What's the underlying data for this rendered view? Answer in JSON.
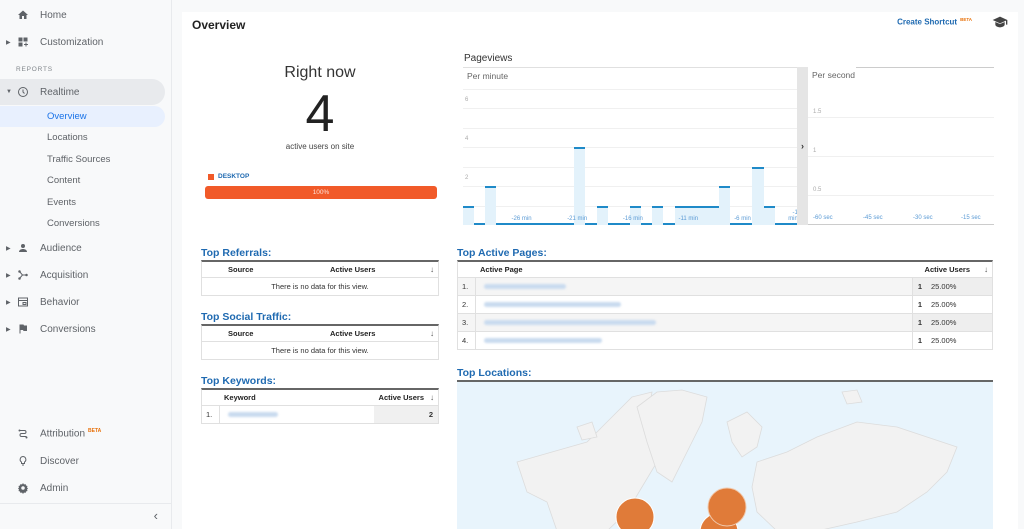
{
  "sidebar": {
    "top_items": [
      {
        "label": "Home",
        "icon": "home-icon"
      },
      {
        "label": "Customization",
        "icon": "dashboard-icon"
      }
    ],
    "reports_label": "REPORTS",
    "realtime": {
      "label": "Realtime",
      "icon": "clock-icon",
      "subitems": [
        {
          "label": "Overview",
          "active": true
        },
        {
          "label": "Locations"
        },
        {
          "label": "Traffic Sources"
        },
        {
          "label": "Content"
        },
        {
          "label": "Events"
        },
        {
          "label": "Conversions"
        }
      ]
    },
    "report_items": [
      {
        "label": "Audience",
        "icon": "person-icon"
      },
      {
        "label": "Acquisition",
        "icon": "branch-icon"
      },
      {
        "label": "Behavior",
        "icon": "window-icon"
      },
      {
        "label": "Conversions",
        "icon": "flag-icon"
      }
    ],
    "bottom_items": [
      {
        "label": "Attribution",
        "badge": "BETA",
        "icon": "attribution-icon"
      },
      {
        "label": "Discover",
        "icon": "lightbulb-icon"
      },
      {
        "label": "Admin",
        "icon": "gear-icon"
      }
    ],
    "collapse_glyph": "‹"
  },
  "header": {
    "title": "Overview",
    "shortcut_label": "Create Shortcut",
    "shortcut_badge": "BETA"
  },
  "right_now": {
    "title": "Right now",
    "count": "4",
    "subtitle": "active users on site",
    "device_label": "DESKTOP",
    "device_percent": "100%",
    "device_color": "#f15a29"
  },
  "pageviews": {
    "title": "Pageviews",
    "per_minute_label": "Per minute",
    "per_second_label": "Per second",
    "expand_glyph": "›"
  },
  "chart_data": [
    {
      "type": "bar",
      "title": "Pageviews — Per minute",
      "x": [
        "-30",
        "-29",
        "-28",
        "-27",
        "-26",
        "-25",
        "-24",
        "-23",
        "-22",
        "-21",
        "-20",
        "-19",
        "-18",
        "-17",
        "-16",
        "-15",
        "-14",
        "-13",
        "-12",
        "-11",
        "-10",
        "-9",
        "-8",
        "-7",
        "-6",
        "-5",
        "-4",
        "-3",
        "-2",
        "-1"
      ],
      "values": [
        1,
        0,
        2,
        0,
        0,
        0,
        0,
        0,
        0,
        0,
        4,
        0,
        1,
        0,
        0,
        1,
        0,
        1,
        0,
        1,
        1,
        1,
        1,
        2,
        0,
        0,
        3,
        1,
        0,
        0
      ],
      "xtick_labels": [
        "-26 min",
        "-21 min",
        "-16 min",
        "-11 min",
        "-6 min",
        "-1 min"
      ],
      "yticks": [
        "2",
        "4",
        "6"
      ],
      "ylim": [
        0,
        8
      ],
      "grid": true,
      "bar_color": "#e3f2fb",
      "line_color": "#1f8ac8"
    },
    {
      "type": "bar",
      "title": "Pageviews — Per second",
      "values": [],
      "xtick_labels": [
        "-60 sec",
        "-45 sec",
        "-30 sec",
        "-15 sec"
      ],
      "yticks": [
        "0.5",
        "1",
        "1.5"
      ],
      "ylim": [
        0,
        2
      ],
      "grid": true
    }
  ],
  "top_referrals": {
    "title": "Top Referrals:",
    "col_source": "Source",
    "col_users": "Active Users",
    "empty": "There is no data for this view."
  },
  "top_social": {
    "title": "Top Social Traffic:",
    "col_source": "Source",
    "col_users": "Active Users",
    "empty": "There is no data for this view."
  },
  "top_keywords": {
    "title": "Top Keywords:",
    "col_keyword": "Keyword",
    "col_users": "Active Users",
    "rows": [
      {
        "index": "1.",
        "value": "2"
      }
    ]
  },
  "top_pages": {
    "title": "Top Active Pages:",
    "col_page": "Active Page",
    "col_users": "Active Users",
    "rows": [
      {
        "index": "1.",
        "users": "1",
        "percent": "25.00%"
      },
      {
        "index": "2.",
        "users": "1",
        "percent": "25.00%"
      },
      {
        "index": "3.",
        "users": "1",
        "percent": "25.00%"
      },
      {
        "index": "4.",
        "users": "1",
        "percent": "25.00%"
      }
    ]
  },
  "top_locations": {
    "title": "Top Locations:",
    "bubble_color": "#e07b39"
  }
}
